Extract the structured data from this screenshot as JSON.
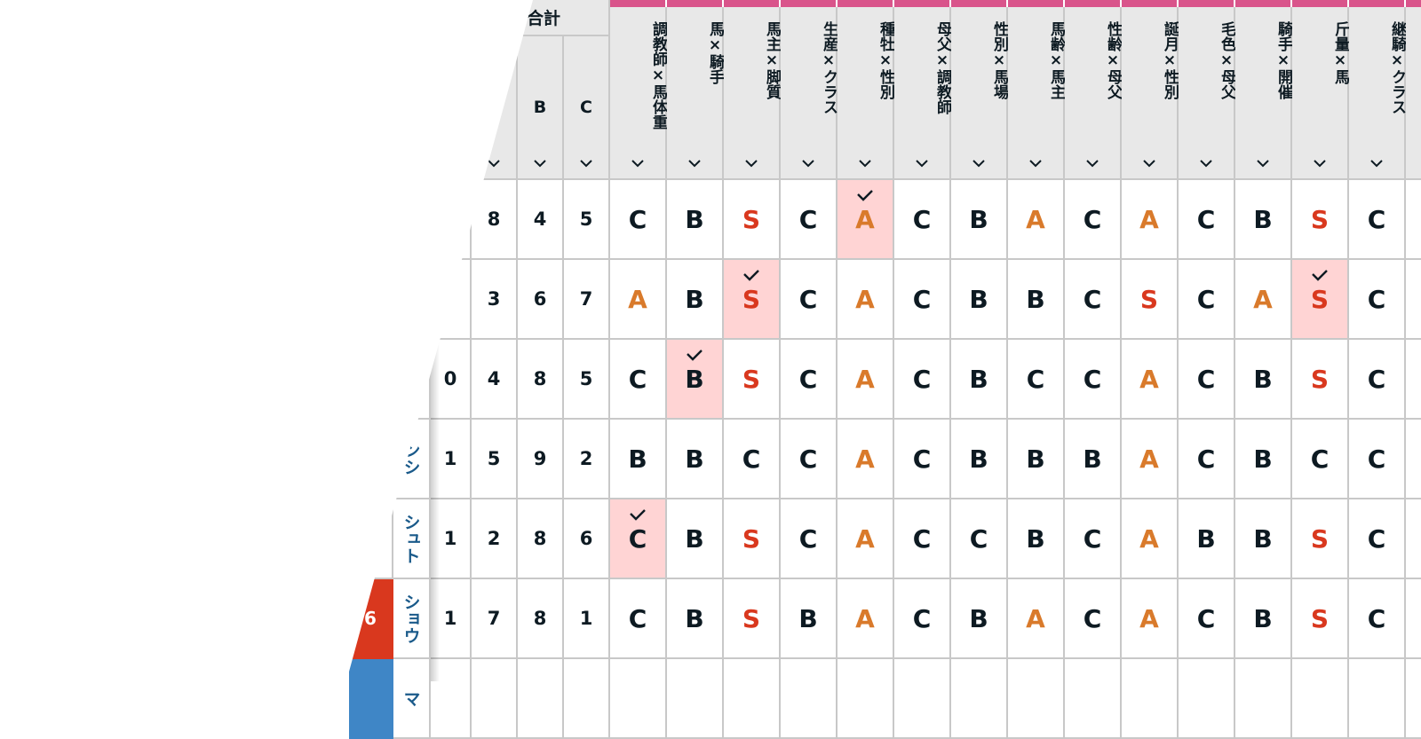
{
  "header": {
    "group_label": "合計",
    "sub_columns": [
      "",
      "",
      "B",
      "C"
    ],
    "rating_columns": [
      "調教師×馬体重",
      "馬×騎手",
      "馬主×脚質",
      "生産×クラス",
      "種牡×性別",
      "母父×調教師",
      "性別×馬場",
      "馬齢×馬主",
      "性齢×母父",
      "誕月×性別",
      "毛色×母父",
      "騎手×開催",
      "斤量×馬",
      "継騎×クラス",
      ""
    ]
  },
  "colors": {
    "S": "#d9381e",
    "A": "#d97a2b",
    "B": "#0d1a22",
    "C": "#0d1a22",
    "accent": "#d9548b",
    "highlight": "#ffd4d4",
    "name_text": "#1a5a8a",
    "badge_red": "#d9381e",
    "badge_blue": "#3f86c6"
  },
  "rows": [
    {
      "name": "",
      "badge": "",
      "counts": [
        "",
        "8",
        "4",
        "5"
      ],
      "grades": [
        "C",
        "B",
        "S",
        "C",
        "A",
        "C",
        "B",
        "A",
        "C",
        "A",
        "C",
        "B",
        "S",
        "C",
        ""
      ],
      "checked": [
        4
      ]
    },
    {
      "name": "",
      "badge": "",
      "counts": [
        "",
        "3",
        "6",
        "7"
      ],
      "grades": [
        "A",
        "B",
        "S",
        "C",
        "A",
        "C",
        "B",
        "B",
        "C",
        "S",
        "C",
        "A",
        "S",
        "C",
        ""
      ],
      "checked": [
        2,
        12
      ]
    },
    {
      "name": "",
      "badge": "",
      "counts": [
        "0",
        "4",
        "8",
        "5"
      ],
      "grades": [
        "C",
        "B",
        "S",
        "C",
        "A",
        "C",
        "B",
        "C",
        "C",
        "A",
        "C",
        "B",
        "S",
        "C",
        ""
      ],
      "checked": [
        1
      ]
    },
    {
      "name": "ンシ",
      "badge": "",
      "counts": [
        "1",
        "5",
        "9",
        "2"
      ],
      "grades": [
        "B",
        "B",
        "C",
        "C",
        "A",
        "C",
        "B",
        "B",
        "B",
        "A",
        "C",
        "B",
        "C",
        "C",
        ""
      ],
      "checked": []
    },
    {
      "name": "シュト",
      "badge": "",
      "counts": [
        "1",
        "2",
        "8",
        "6"
      ],
      "grades": [
        "C",
        "B",
        "S",
        "C",
        "A",
        "C",
        "C",
        "B",
        "C",
        "A",
        "B",
        "B",
        "S",
        "C",
        ""
      ],
      "checked": [
        0
      ]
    },
    {
      "name": "ショウ",
      "badge": "6",
      "counts": [
        "1",
        "7",
        "8",
        "1"
      ],
      "grades": [
        "C",
        "B",
        "S",
        "B",
        "A",
        "C",
        "B",
        "A",
        "C",
        "A",
        "C",
        "B",
        "S",
        "C",
        ""
      ],
      "checked": []
    },
    {
      "name": "マ",
      "badge": "",
      "counts": [
        "",
        "",
        "",
        ""
      ],
      "grades": [
        "",
        "",
        "",
        "",
        "",
        "",
        "",
        "",
        "",
        "",
        "",
        "",
        "",
        "",
        ""
      ],
      "checked": []
    }
  ]
}
